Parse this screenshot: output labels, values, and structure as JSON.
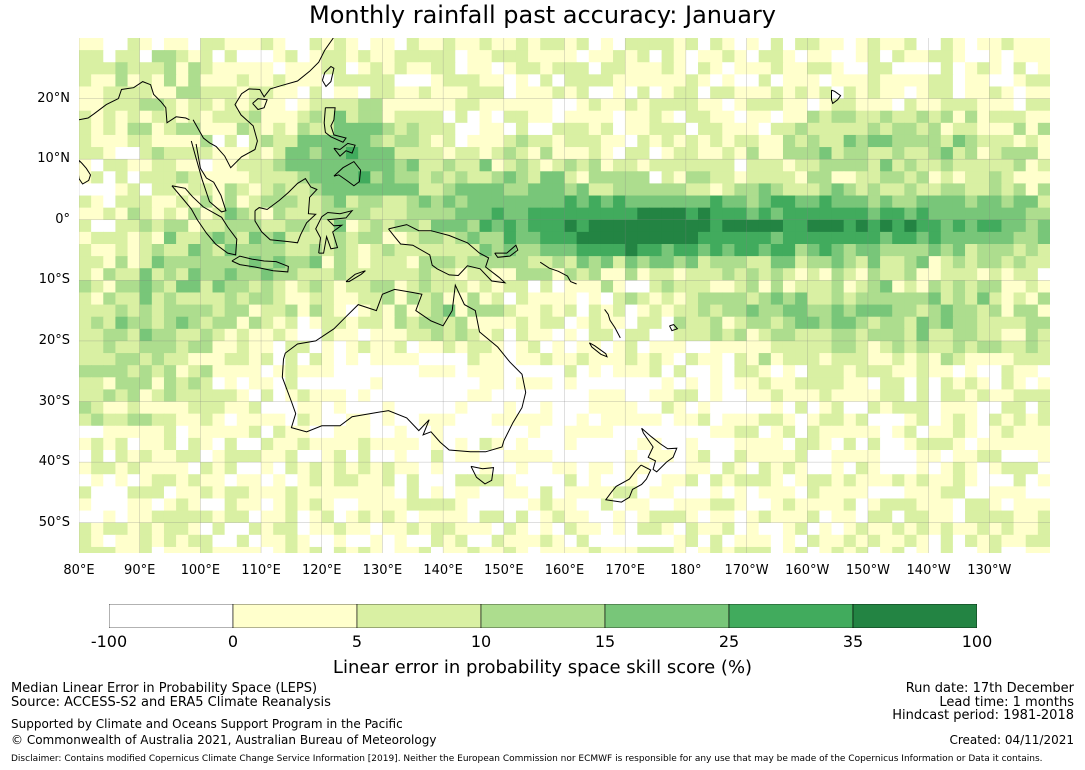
{
  "title": "Monthly rainfall past accuracy: January",
  "colors": {
    "bin_colors": [
      "#ffffff",
      "#ffffcc",
      "#d9f0a3",
      "#addd8e",
      "#78c679",
      "#41ab5d",
      "#238443"
    ],
    "coastline": "#000000",
    "grid": "#808080"
  },
  "chart_data": {
    "type": "heatmap",
    "lat_range": [
      -55,
      30
    ],
    "lon_range": [
      80,
      240
    ],
    "lat_ticks": [
      {
        "value": 20,
        "label": "20°N"
      },
      {
        "value": 10,
        "label": "10°N"
      },
      {
        "value": 0,
        "label": "0°"
      },
      {
        "value": -10,
        "label": "10°S"
      },
      {
        "value": -20,
        "label": "20°S"
      },
      {
        "value": -30,
        "label": "30°S"
      },
      {
        "value": -40,
        "label": "40°S"
      },
      {
        "value": -50,
        "label": "50°S"
      }
    ],
    "lon_ticks": [
      {
        "value": 80,
        "label": "80°E"
      },
      {
        "value": 90,
        "label": "90°E"
      },
      {
        "value": 100,
        "label": "100°E"
      },
      {
        "value": 110,
        "label": "110°E"
      },
      {
        "value": 120,
        "label": "120°E"
      },
      {
        "value": 130,
        "label": "130°E"
      },
      {
        "value": 140,
        "label": "140°E"
      },
      {
        "value": 150,
        "label": "150°E"
      },
      {
        "value": 160,
        "label": "160°E"
      },
      {
        "value": 170,
        "label": "170°E"
      },
      {
        "value": 180,
        "label": "180°"
      },
      {
        "value": 190,
        "label": "170°W"
      },
      {
        "value": 200,
        "label": "160°W"
      },
      {
        "value": 210,
        "label": "150°W"
      },
      {
        "value": 220,
        "label": "140°W"
      },
      {
        "value": 230,
        "label": "130°W"
      }
    ],
    "colorbar": {
      "bounds": [
        -100,
        0,
        5,
        10,
        15,
        25,
        35,
        100
      ],
      "tick_labels": [
        "-100",
        "0",
        "5",
        "10",
        "15",
        "25",
        "35",
        "100"
      ],
      "label": "Linear error in probability space skill score (%)"
    },
    "grid": true
  },
  "footer": {
    "line1": "Median Linear Error in Probability Space (LEPS)",
    "line2": "Source: ACCESS-S2 and ERA5 Climate Reanalysis",
    "line3": "Supported by Climate and Oceans Support Program in the Pacific",
    "line4": "© Commonwealth of Australia 2021, Australian Bureau of Meteorology",
    "run_date": "Run date: 17th December",
    "lead_time": "Lead time: 1 months",
    "hindcast": "Hindcast period: 1981-2018",
    "created": "Created: 04/11/2021",
    "disclaimer": "Disclaimer: Contains modified Copernicus Climate Change Service Information [2019]. Neither the European Commission nor ECMWF is responsible for any use that may be made of the Copernicus Information or Data it contains."
  }
}
